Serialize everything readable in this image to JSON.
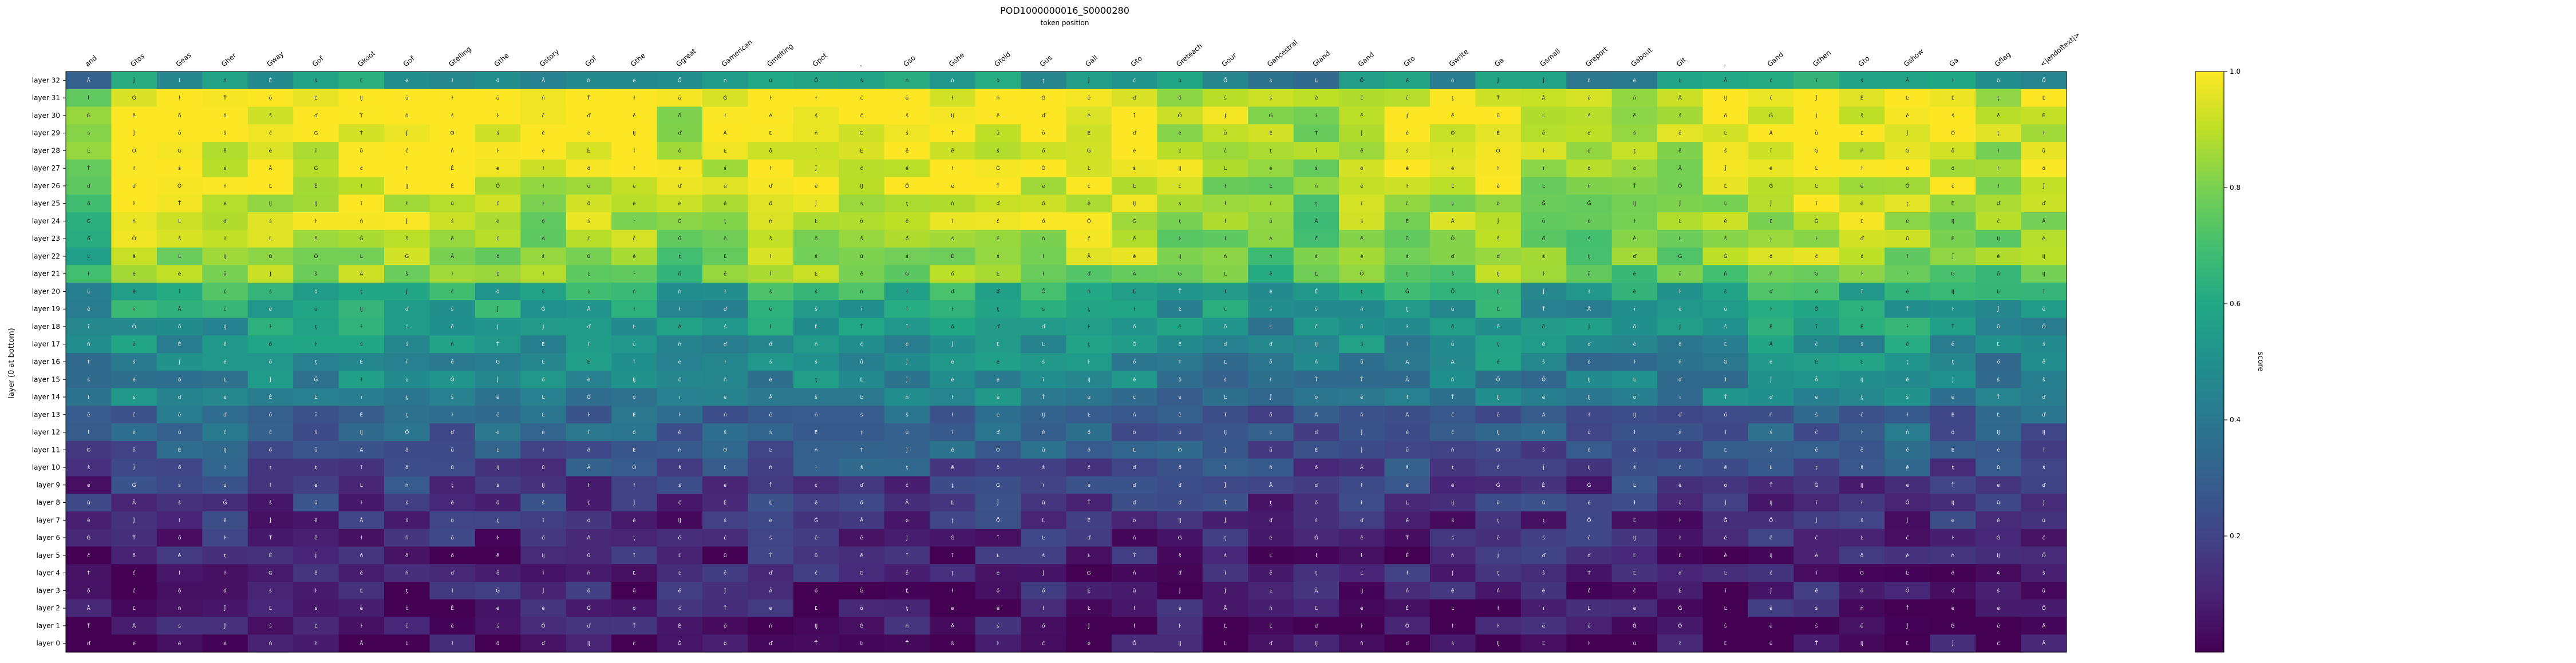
{
  "chart_data": {
    "type": "heatmap",
    "title": "POD1000000016_S0000280",
    "subtitle": "token position",
    "ylabel": "layer (0 at bottom)",
    "colorbar_label": "score",
    "colorbar_ticks": [
      "0.2",
      "0.4",
      "0.6",
      "0.8",
      "1.0"
    ],
    "colorbar_tick_values": [
      0.2,
      0.4,
      0.6,
      0.8,
      1.0
    ],
    "vmin": 0.0,
    "vmax": 1.0,
    "colormap": "viridis",
    "x_labels": [
      "and",
      "Gtos",
      "Geas",
      "Gher",
      "Gway",
      "Gof",
      "Gkoot",
      "Gof",
      "Gtelling",
      "Gthe",
      "Gstory",
      "Gof",
      "Gthe",
      "Ggreat",
      "Gamerican",
      "Gmelting",
      "Gpot",
      ".",
      "Gso",
      "Gshe",
      "Gtold",
      "Gus",
      "Gall",
      "Gto",
      "Greteach",
      "Gour",
      "Gancestral",
      "Gland",
      "Gand",
      "Gto",
      "Gwrite",
      "Ga",
      "Gsmall",
      "Greport",
      "Gabout",
      "Git",
      ".",
      "Gand",
      "Gthen",
      "Gto",
      "Gshow",
      "Ga",
      "Gflag",
      "<|endoftext|>"
    ],
    "y_labels": [
      "layer 32",
      "layer 31",
      "layer 30",
      "layer 29",
      "layer 28",
      "layer 27",
      "layer 26",
      "layer 25",
      "layer 24",
      "layer 23",
      "layer 22",
      "layer 21",
      "layer 20",
      "layer 19",
      "layer 18",
      "layer 17",
      "layer 16",
      "layer 15",
      "layer 14",
      "layer 13",
      "layer 12",
      "layer 11",
      "layer 10",
      "layer 9",
      "layer 8",
      "layer 7",
      "layer 6",
      "layer 5",
      "layer 4",
      "layer 3",
      "layer 2",
      "layer 1",
      "layer 0"
    ],
    "row_levels": [
      0.55,
      0.95,
      0.93,
      0.92,
      0.9,
      0.9,
      0.88,
      0.85,
      0.82,
      0.8,
      0.78,
      0.75,
      0.62,
      0.58,
      0.55,
      0.52,
      0.48,
      0.46,
      0.44,
      0.32,
      0.31,
      0.28,
      0.24,
      0.18,
      0.16,
      0.14,
      0.12,
      0.1,
      0.09,
      0.08,
      0.07,
      0.05,
      0.03
    ],
    "column_profile": [
      0.75,
      1.0,
      1.0,
      1.0,
      1.0,
      1.0,
      1.0,
      1.0,
      1.0,
      1.0,
      0.95,
      1.0,
      1.0,
      0.9,
      0.92,
      1.0,
      1.0,
      1.0,
      1.0,
      1.0,
      1.0,
      1.0,
      1.0,
      1.0,
      0.9,
      0.9,
      0.85,
      0.8,
      0.95,
      0.95,
      0.95,
      1.0,
      0.9,
      0.9,
      0.9,
      0.9,
      0.95,
      1.0,
      1.0,
      1.0,
      1.0,
      0.95,
      0.9,
      0.95
    ],
    "cell_token_glyphs": [
      "Ā",
      "ĉ",
      "Ġ",
      "Ŀ",
      "ł",
      "ő",
      "ţ",
      "Ĵ",
      "ė",
      "ē",
      "Ő",
      "ě",
      "ŝ",
      "Ľ",
      "ś",
      "Ť",
      "ĩ",
      "ń",
      "ō",
      "ŀ",
      "ď",
      "Ė",
      "ū",
      "Ĳ"
    ]
  }
}
